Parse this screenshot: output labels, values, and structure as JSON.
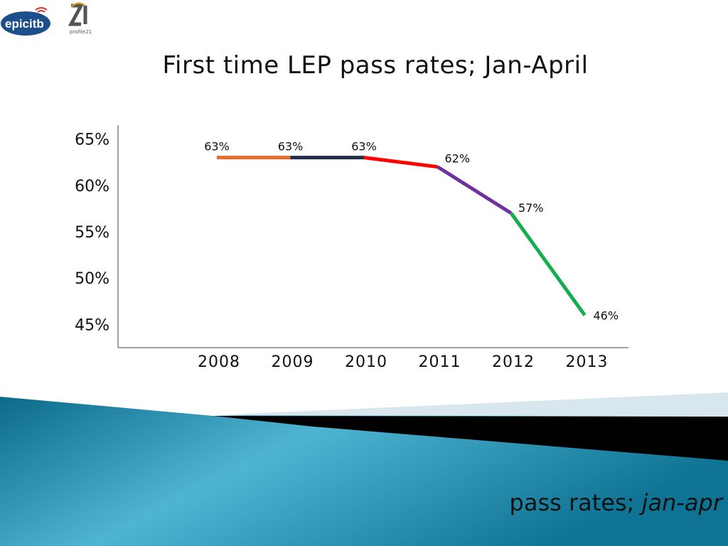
{
  "logos": {
    "epic_text": "epicitb",
    "profile_text": "profile21"
  },
  "title": "First time LEP pass rates; Jan-April",
  "footer": {
    "subtitle_main": "pass rates; ",
    "subtitle_italic": "jan-apr"
  },
  "colors": {
    "seg_2008_2009": "#e8692c",
    "seg_2009_2010": "#1f2d4a",
    "seg_2010_2011": "#ff0000",
    "seg_2011_2012": "#7030a0",
    "seg_2012_2013": "#12b04c",
    "wave_teal": "#3aa6c4",
    "wave_dark": "#0e6f8e"
  },
  "chart_data": {
    "type": "line",
    "title": "First time LEP pass rates; Jan-April",
    "xlabel": "",
    "ylabel": "",
    "categories": [
      "2008",
      "2009",
      "2010",
      "2011",
      "2012",
      "2013"
    ],
    "values": [
      63,
      63,
      63,
      62,
      57,
      46
    ],
    "data_labels": [
      "63%",
      "63%",
      "63%",
      "62%",
      "57%",
      "46%"
    ],
    "y_ticks": [
      65,
      60,
      55,
      50,
      45
    ],
    "y_tick_labels": [
      "65%",
      "60%",
      "55%",
      "50%",
      "45%"
    ],
    "ylim": [
      42.5,
      66.5
    ],
    "grid": false,
    "legend": "none"
  }
}
